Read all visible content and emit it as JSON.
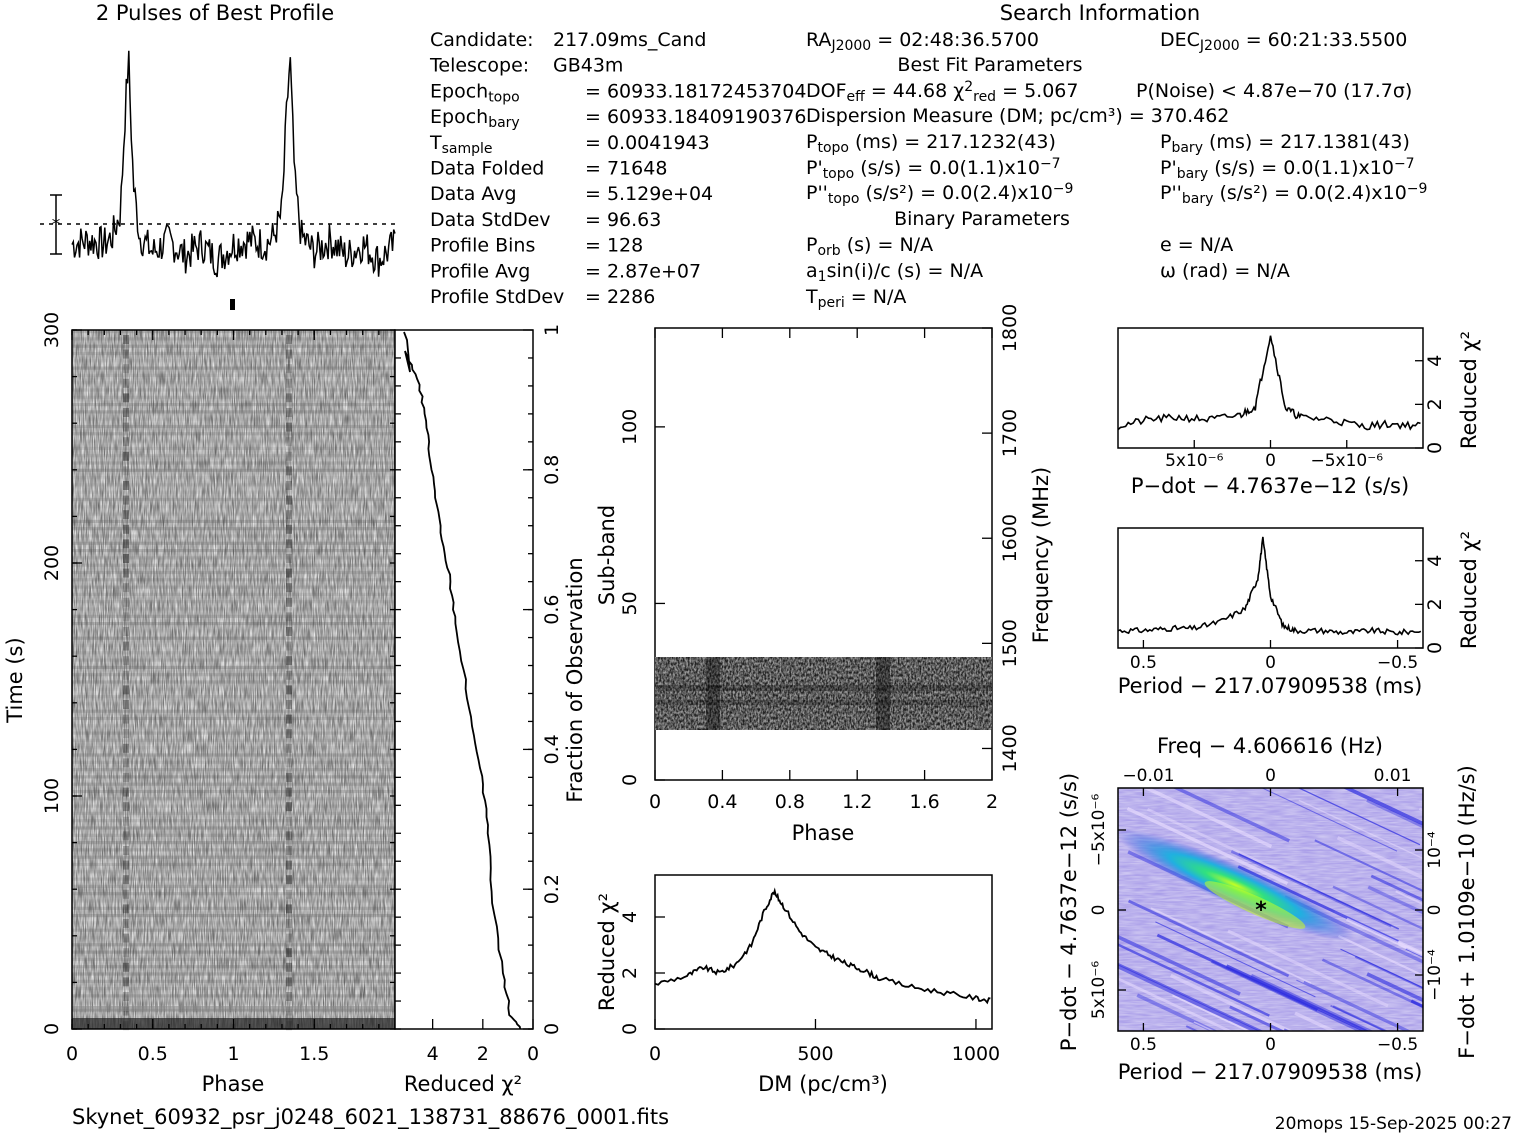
{
  "header": {
    "profile_title": "2 Pulses of Best Profile",
    "search_title": "Search Information",
    "filename": "Skynet_60932_psr_j0248_6021_138731_88676_0001.fits",
    "footer_right": "20mops  15-Sep-2025 00:27"
  },
  "info_left": [
    {
      "label": "Candidate:",
      "value": "217.09ms_Cand"
    },
    {
      "label": "Telescope:",
      "value": "GB43m"
    },
    {
      "label": "Epoch",
      "sub": "topo",
      "value": "= 60933.18172453704"
    },
    {
      "label": "Epoch",
      "sub": "bary",
      "value": "= 60933.18409190376"
    },
    {
      "label": "T",
      "sub": "sample",
      "value": "=   0.0041943"
    },
    {
      "label": "Data Folded",
      "value": "=   71648"
    },
    {
      "label": "Data Avg",
      "value": "=   5.129e+04"
    },
    {
      "label": "Data StdDev",
      "value": "=   96.63"
    },
    {
      "label": "Profile Bins",
      "value": "=   128"
    },
    {
      "label": "Profile Avg",
      "value": "=   2.87e+07"
    },
    {
      "label": "Profile StdDev",
      "value": "=   2286"
    }
  ],
  "info_mid": {
    "ra": "RA",
    "ra_sub": "J2000",
    "ra_val": " = 02:48:36.5700",
    "dec": "DEC",
    "dec_sub": "J2000",
    "dec_val": " = 60:21:33.5500",
    "best_fit": "Best Fit Parameters",
    "dof": "DOF",
    "dof_sub": "eff",
    "dof_val": " = 44.68",
    "chi": "χ",
    "chi_sup": "2",
    "chi_sub": "red",
    "chi_val": " = 5.067",
    "pnoise": "P(Noise) < 4.87e−70   (17.7σ)",
    "dm_line": "Dispersion Measure (DM; pc/cm³) = 370.462",
    "ptopo": "P",
    "ptopo_sub": "topo",
    "ptopo_val": " (ms) =  217.1232(43)",
    "pbary": "P",
    "pbary_sub": "bary",
    "pbary_val": " (ms) =  217.1381(43)",
    "pdtopo": "P'",
    "pdtopo_sub": "topo",
    "pdtopo_val": " (s/s) = 0.0(1.1)x10",
    "pdtopo_exp": "−7",
    "pdbary": "P'",
    "pdbary_sub": "bary",
    "pdbary_val": " (s/s) = 0.0(1.1)x10",
    "pdbary_exp": "−7",
    "pddtopo": "P''",
    "pddtopo_sub": "topo",
    "pddtopo_val": " (s/s²) = 0.0(2.4)x10",
    "pddtopo_exp": "−9",
    "pddbary": "P''",
    "pddbary_sub": "bary",
    "pddbary_val": " (s/s²) = 0.0(2.4)x10",
    "pddbary_exp": "−9",
    "binary": "Binary Parameters",
    "porb": "P",
    "porb_sub": "orb",
    "porb_val": " (s) = N/A",
    "e": "e = N/A",
    "a1": "a",
    "a1_sub": "1",
    "a1_val": "sin(i)/c (s) = N/A",
    "omega": "ω (rad) = N/A",
    "tperi": "T",
    "tperi_sub": "peri",
    "tperi_val": " = N/A"
  },
  "axes": {
    "time_label": "Time (s)",
    "phase_label": "Phase",
    "redchi_label": "Reduced χ²",
    "fraction_label": "Fraction of Observation",
    "subband_label": "Sub-band",
    "freq_label": "Frequency (MHz)",
    "phase2_label": "Phase",
    "dm_label": "DM (pc/cm³)",
    "redchi_v": "Reduced χ²",
    "pdot_label": "P−dot − 4.7637e−12 (s/s)",
    "period_label": "Period − 217.07909538 (ms)",
    "period_label2": "Period − 217.07909538 (ms)",
    "freq_top_label": "Freq − 4.606616 (Hz)",
    "pdot_v_label": "P−dot − 4.7637e−12 (s/s)",
    "fdot_v_label": "F−dot + 1.0109e−10 (Hz/s)"
  },
  "ticks": {
    "time": [
      "0",
      "100",
      "200",
      "300"
    ],
    "phase": [
      "0",
      "0.5",
      "1",
      "1.5"
    ],
    "redchi_x": [
      "4",
      "2",
      "0"
    ],
    "fraction": [
      "0",
      "0.2",
      "0.4",
      "0.6",
      "0.8",
      "1"
    ],
    "subband": [
      "0",
      "50",
      "100"
    ],
    "freq": [
      "1400",
      "1500",
      "1600",
      "1700",
      "1800"
    ],
    "phase2": [
      "0",
      "0.4",
      "0.8",
      "1.2",
      "1.6",
      "2"
    ],
    "dm_x": [
      "0",
      "500",
      "1000"
    ],
    "dm_y": [
      "0",
      "2",
      "4"
    ],
    "pdot_x": [
      "5x10⁻⁶",
      "0",
      "−5x10⁻⁶"
    ],
    "pdot_y": [
      "0",
      "2",
      "4"
    ],
    "period_x": [
      "0.5",
      "0",
      "−0.5"
    ],
    "period_y": [
      "0",
      "2",
      "4"
    ],
    "pp_x": [
      "0.5",
      "0",
      "−0.5"
    ],
    "pp_top": [
      "−0.01",
      "0",
      "0.01"
    ],
    "pp_left": [
      "−5x10⁻⁶",
      "0",
      "5x10⁻⁶"
    ],
    "pp_right": [
      "10⁻⁴",
      "0",
      "−10⁻⁴"
    ]
  },
  "colors": {
    "accent_green": "#40ff40",
    "pp_blue": "#2a2ae0",
    "pp_light": "#c8b4f0"
  },
  "chart_data": [
    {
      "type": "line",
      "title": "2 Pulses of Best Profile",
      "x": [
        0.0,
        0.1,
        0.2,
        0.25,
        0.3,
        0.33,
        0.35,
        0.38,
        0.42,
        0.5,
        0.6,
        0.7,
        0.8,
        0.9,
        1.0,
        1.1,
        1.2,
        1.25,
        1.3,
        1.33,
        1.35,
        1.38,
        1.42,
        1.5,
        1.6,
        1.7,
        1.8,
        1.9,
        2.0
      ],
      "values": [
        0.1,
        0.2,
        0.1,
        0.3,
        0.9,
        3.5,
        4.8,
        1.6,
        0.3,
        -0.1,
        0.2,
        -0.2,
        0.1,
        -0.3,
        0.1,
        0.2,
        0.1,
        0.3,
        0.9,
        3.5,
        4.8,
        1.6,
        0.3,
        -0.1,
        0.2,
        -0.2,
        0.1,
        -0.3,
        0.1
      ],
      "xlim": [
        0,
        2
      ]
    },
    {
      "type": "line",
      "xlabel": "Reduced χ²",
      "ylabel": "Fraction of Observation",
      "x": [
        0.5,
        0.9,
        1.2,
        1.6,
        1.8,
        2.0,
        2.4,
        2.7,
        3.1,
        3.3,
        3.6,
        3.9,
        4.1,
        4.3,
        4.6,
        5.1
      ],
      "y": [
        0.0,
        0.02,
        0.08,
        0.18,
        0.28,
        0.35,
        0.42,
        0.5,
        0.58,
        0.64,
        0.7,
        0.76,
        0.82,
        0.88,
        0.93,
        0.97
      ],
      "xlim": [
        5.5,
        0
      ],
      "ylim": [
        0,
        1
      ]
    },
    {
      "type": "line",
      "xlabel": "DM (pc/cm³)",
      "ylabel": "Reduced χ²",
      "x": [
        0,
        100,
        150,
        200,
        250,
        300,
        340,
        370,
        400,
        450,
        500,
        550,
        600,
        650,
        700,
        800,
        900,
        1000,
        1050
      ],
      "values": [
        1.6,
        1.9,
        2.2,
        2.0,
        2.3,
        3.0,
        4.2,
        4.9,
        4.4,
        3.5,
        2.9,
        2.6,
        2.3,
        2.1,
        1.8,
        1.5,
        1.3,
        1.1,
        1.0
      ],
      "xlim": [
        0,
        1050
      ],
      "ylim": [
        0,
        5.5
      ]
    },
    {
      "type": "line",
      "xlabel": "P−dot − 4.7637e−12 (s/s)",
      "ylabel": "Reduced χ²",
      "x": [
        1e-05,
        8e-06,
        6e-06,
        4e-06,
        2e-06,
        1e-06,
        0,
        -1e-06,
        -2e-06,
        -4e-06,
        -6e-06,
        -8e-06,
        -1e-05
      ],
      "values": [
        1.0,
        1.3,
        1.4,
        1.3,
        1.5,
        1.9,
        5.2,
        1.8,
        1.4,
        1.3,
        1.0,
        1.1,
        1.0
      ],
      "xlim": [
        1e-05,
        -1e-05
      ],
      "ylim": [
        0,
        5.5
      ]
    },
    {
      "type": "line",
      "xlabel": "Period − 217.07909538 (ms)",
      "ylabel": "Reduced χ²",
      "x": [
        0.6,
        0.5,
        0.4,
        0.3,
        0.2,
        0.1,
        0.05,
        0.03,
        0.0,
        -0.05,
        -0.1,
        -0.2,
        -0.3,
        -0.4,
        -0.5,
        -0.6
      ],
      "values": [
        0.8,
        0.8,
        0.9,
        0.9,
        1.2,
        1.8,
        3.2,
        5.0,
        2.4,
        1.0,
        0.8,
        0.8,
        0.7,
        0.8,
        0.7,
        0.8
      ],
      "xlim": [
        0.6,
        -0.6
      ],
      "ylim": [
        0,
        5.5
      ]
    }
  ]
}
